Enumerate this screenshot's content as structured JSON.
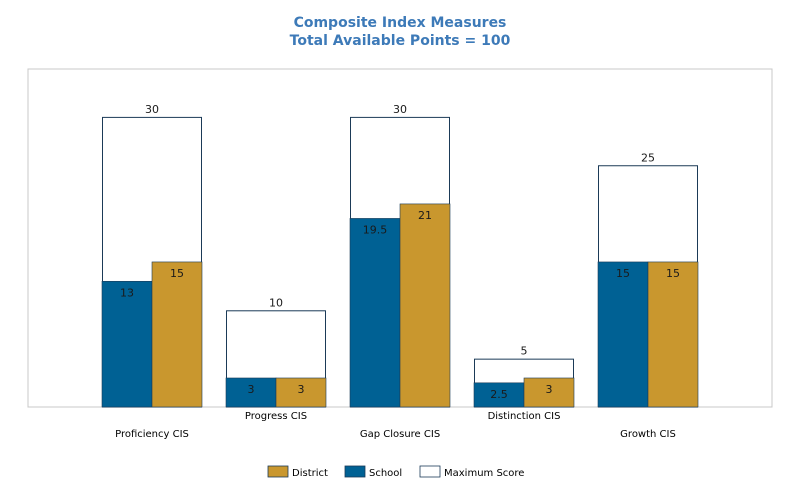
{
  "colors": {
    "district": "#c9972e",
    "school": "#006194",
    "maximum_fill": "#ffffff",
    "outline": "#1b3a57",
    "title": "#3d7ab8",
    "plot_border": "#c8c8c8"
  },
  "chart_data": {
    "type": "bar",
    "title": "Composite Index Measures",
    "subtitle": "Total Available Points = 100",
    "xlabel": "",
    "ylabel": "",
    "ylim": [
      0,
      30
    ],
    "grid": false,
    "legend_position": "bottom-center",
    "categories": [
      "Proficiency CIS",
      "Progress CIS",
      "Gap Closure CIS",
      "Distinction CIS",
      "Growth CIS"
    ],
    "series": [
      {
        "name": "District",
        "values": [
          15,
          3,
          21,
          3,
          15
        ]
      },
      {
        "name": "School",
        "values": [
          13,
          3,
          19.5,
          2.5,
          15
        ]
      },
      {
        "name": "Maximum Score",
        "values": [
          30,
          10,
          30,
          5,
          25
        ]
      }
    ],
    "data_labels": {
      "maximum": [
        "30",
        "10",
        "30",
        "5",
        "25"
      ],
      "school": [
        "13",
        "3",
        "19.5",
        "2.5",
        "15"
      ],
      "district": [
        "15",
        "3",
        "21",
        "3",
        "15"
      ]
    },
    "legend": [
      "District",
      "School",
      "Maximum Score"
    ]
  }
}
